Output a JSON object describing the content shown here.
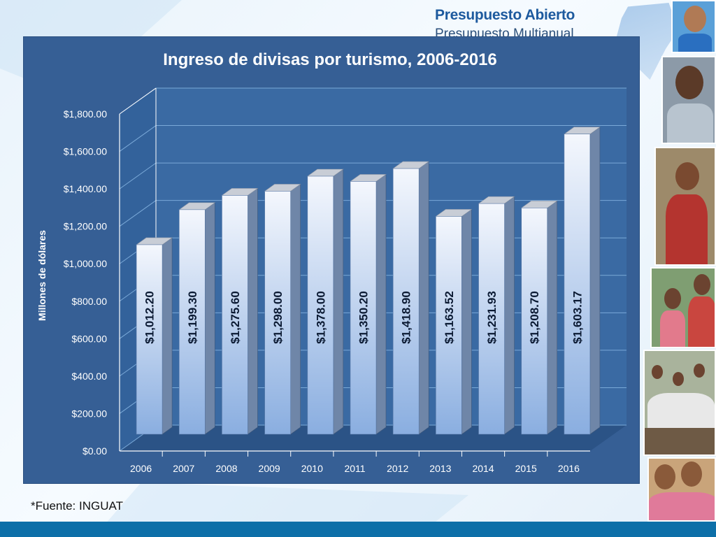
{
  "brand": {
    "title": "Presupuesto Abierto",
    "subtitle": "Presupuesto Multianual"
  },
  "source_note": "*Fuente: INGUAT",
  "colors": {
    "panel_bg": "#365f95",
    "bar_front_top": "#f2f5fc",
    "bar_front_bottom": "#8fb0e0",
    "grid": "#7aa9d8",
    "text": "#ffffff",
    "footer": "#0d6fa8"
  },
  "chart_data": {
    "type": "bar",
    "title": "Ingreso de divisas por turismo, 2006-2016",
    "ylabel": "Millones de dólares",
    "xlabel": "",
    "categories": [
      "2006",
      "2007",
      "2008",
      "2009",
      "2010",
      "2011",
      "2012",
      "2013",
      "2014",
      "2015",
      "2016"
    ],
    "values": [
      1012.2,
      1199.3,
      1275.6,
      1298.0,
      1378.0,
      1350.2,
      1418.9,
      1163.52,
      1231.93,
      1208.7,
      1603.17
    ],
    "value_labels": [
      "$1,012.20",
      "$1,199.30",
      "$1,275.60",
      "$1,298.00",
      "$1,378.00",
      "$1,350.20",
      "$1,418.90",
      "$1,163.52",
      "$1,231.93",
      "$1,208.70",
      "$1,603.17"
    ],
    "ylim": [
      0,
      1800
    ],
    "yticks": [
      0,
      200,
      400,
      600,
      800,
      1000,
      1200,
      1400,
      1600,
      1800
    ],
    "ytick_labels": [
      "$0.00",
      "$200.00",
      "$400.00",
      "$600.00",
      "$800.00",
      "$1,000.00",
      "$1,200.00",
      "$1,400.00",
      "$1,600.00",
      "$1,800.00"
    ],
    "grid": true,
    "style": "3d-bar"
  }
}
